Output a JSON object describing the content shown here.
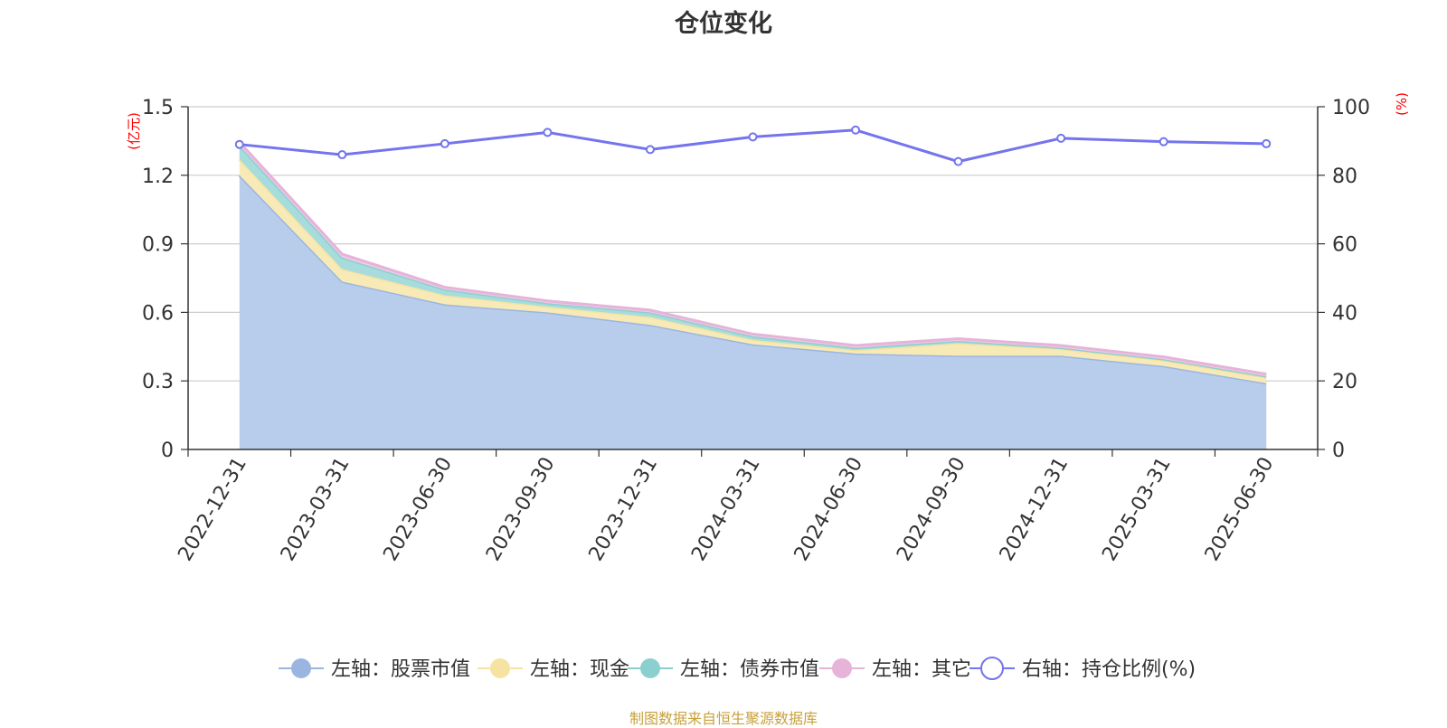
{
  "chart_data": {
    "type": "area",
    "title": "仓位变化",
    "source": "制图数据来自恒生聚源数据库",
    "y_left_unit": "(亿元)",
    "y_right_unit": "(%)",
    "y_left_ticks": [
      "0",
      "0.3",
      "0.6",
      "0.9",
      "1.2",
      "1.5"
    ],
    "y_right_ticks": [
      "0",
      "20",
      "40",
      "60",
      "80",
      "100"
    ],
    "ylim_left": [
      0,
      1.5
    ],
    "ylim_right": [
      0,
      100
    ],
    "grid": true,
    "legend_position": "bottom",
    "categories": [
      "2022-12-31",
      "2023-03-31",
      "2023-06-30",
      "2023-09-30",
      "2023-12-31",
      "2024-03-31",
      "2024-06-30",
      "2024-09-30",
      "2024-12-31",
      "2025-03-31",
      "2025-06-30"
    ],
    "series": [
      {
        "name": "左轴：股票市值",
        "axis": "left",
        "stacked": true,
        "color": "#9ab6e0",
        "fill": "#b8cdeb",
        "values": [
          1.2,
          0.735,
          0.635,
          0.6,
          0.545,
          0.46,
          0.42,
          0.41,
          0.41,
          0.365,
          0.29
        ]
      },
      {
        "name": "左轴：现金",
        "axis": "left",
        "stacked": true,
        "color": "#f6e3a1",
        "fill": "#f8eab6",
        "values": [
          0.07,
          0.055,
          0.04,
          0.025,
          0.035,
          0.02,
          0.015,
          0.055,
          0.03,
          0.025,
          0.025
        ]
      },
      {
        "name": "左轴：债券市值",
        "axis": "left",
        "stacked": true,
        "color": "#8ccfcf",
        "fill": "#a6dcdc",
        "values": [
          0.06,
          0.05,
          0.025,
          0.015,
          0.02,
          0.015,
          0.01,
          0.01,
          0.005,
          0.005,
          0.005
        ]
      },
      {
        "name": "左轴：其它",
        "axis": "left",
        "stacked": true,
        "color": "#e6b3d9",
        "fill": "#efcbe5",
        "values": [
          0.015,
          0.015,
          0.01,
          0.01,
          0.01,
          0.01,
          0.01,
          0.01,
          0.01,
          0.01,
          0.01
        ]
      },
      {
        "name": "右轴：持仓比例(%)",
        "axis": "right",
        "type": "line",
        "color": "#7474ee",
        "values": [
          89,
          86,
          89.2,
          92.5,
          87.5,
          91.2,
          93.2,
          84,
          90.8,
          89.8,
          89.2
        ]
      }
    ]
  }
}
